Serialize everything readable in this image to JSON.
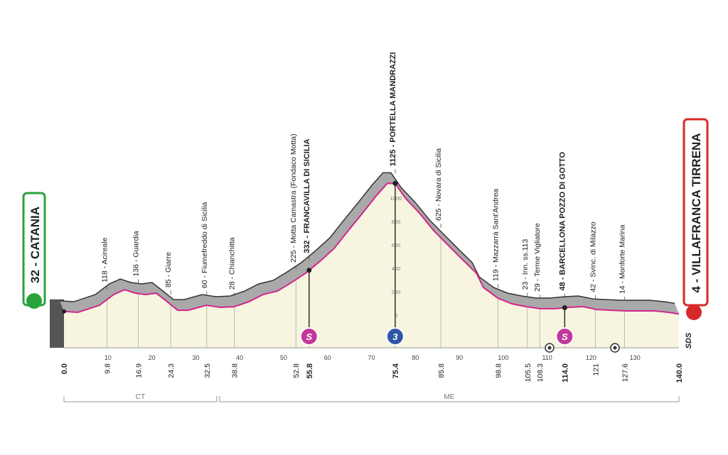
{
  "chart_data": {
    "type": "elevation-profile",
    "start": {
      "name": "32 - CATANIA",
      "km": {
        "value": 0,
        "label": "0.0"
      },
      "color": "#2aa33c"
    },
    "finish": {
      "name": "4 - VILLAFRANCA TIRRENA",
      "km": {
        "value": 140,
        "label": "140.0"
      },
      "color": "#d62a2a"
    },
    "waypoints": [
      {
        "km": 9.8,
        "name": "118 - Acireale"
      },
      {
        "km": 16.9,
        "name": "136 - Guardia"
      },
      {
        "km": 24.3,
        "name": "85 - Giarre"
      },
      {
        "km": 32.5,
        "name": "60 - Fiumefreddo di Sicilia"
      },
      {
        "km": 38.8,
        "name": "28 - Chianchitta"
      },
      {
        "km": 52.8,
        "name": "225 - Motta Camastra (Fondaco Motta)"
      },
      {
        "km": 55.8,
        "name": "332 - FRANCAVILLA DI SICILIA",
        "marker": "S",
        "marker_color": "#c2389a"
      },
      {
        "km": 75.4,
        "name": "1125 - PORTELLA MANDRAZZI",
        "marker": "3",
        "marker_color": "#2d56a8"
      },
      {
        "km": 85.8,
        "name": "625 - Novara di Sicilia"
      },
      {
        "km": 98.8,
        "name": "119 - Mazzarrà Sant'Andrea"
      },
      {
        "km": 105.5,
        "name": "23 - Inn. ss.113"
      },
      {
        "km": 108.3,
        "name": "29 - Terme Vigliatore"
      },
      {
        "km": {
          "value": 114,
          "label": "114.0"
        },
        "name": "48 - BARCELLONA POZZO DI GOTTO",
        "marker": "S",
        "marker_color": "#c2389a"
      },
      {
        "km": 121.0,
        "name": "42 - Svinc. di Milazzo"
      },
      {
        "km": 127.6,
        "name": "14 - Monforte Marina"
      }
    ],
    "x": [
      0,
      3.2,
      8.1,
      11.3,
      13.8,
      16.2,
      18.6,
      21.0,
      23.5,
      25.9,
      28.3,
      32.4,
      35.6,
      38.8,
      42.1,
      45.3,
      48.6,
      51.8,
      55.0,
      58.3,
      61.5,
      64.7,
      68.0,
      71.2,
      73.6,
      75.4,
      77.7,
      80.9,
      84.2,
      87.4,
      90.6,
      93.9,
      95.5,
      98.8,
      102.0,
      105.2,
      108.4,
      111.7,
      114.9,
      118.1,
      121.4,
      124.6,
      127.9,
      131.1,
      134.3,
      137.6,
      140
    ],
    "values": [
      32,
      24,
      85,
      176,
      218,
      188,
      176,
      188,
      115,
      42,
      42,
      85,
      67,
      73,
      115,
      176,
      206,
      279,
      358,
      461,
      570,
      721,
      873,
      1024,
      1125,
      1125,
      1000,
      873,
      721,
      600,
      479,
      358,
      236,
      145,
      97,
      73,
      55,
      55,
      67,
      73,
      48,
      42,
      36,
      36,
      36,
      24,
      10
    ],
    "line_color": "#d3268f",
    "fill_color": "#f7f5df",
    "band_color": "#a9a9a9",
    "xlim": [
      0,
      140
    ],
    "xticks": [
      10,
      20,
      30,
      40,
      50,
      60,
      70,
      80,
      90,
      100,
      110,
      120,
      130
    ],
    "ylim": [
      0,
      1000
    ],
    "yticks": [
      0,
      200,
      400,
      600,
      800,
      1000
    ],
    "provinces": [
      {
        "name": "CT",
        "from": 0,
        "to": 35.1
      },
      {
        "name": "ME",
        "from": 35.1,
        "to": 140
      }
    ],
    "logo": "SDS"
  }
}
